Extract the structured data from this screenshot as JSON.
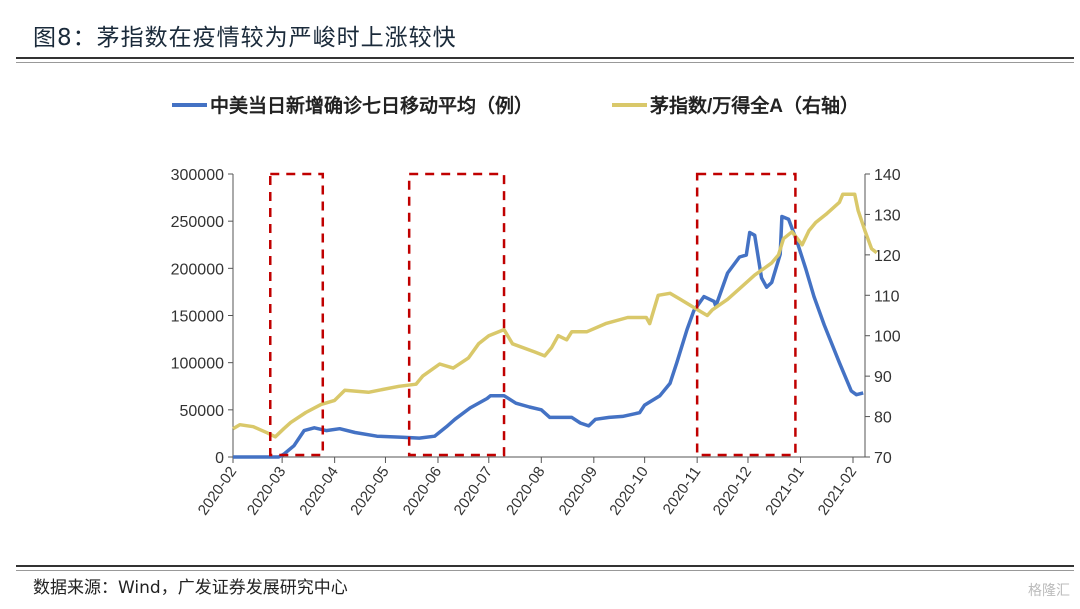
{
  "title": "图8：茅指数在疫情较为严峻时上涨较快",
  "source": "数据来源：Wind，广发证券发展研究中心",
  "watermark": "格隆汇",
  "chart_data": {
    "type": "line",
    "x_origin": "2020-02-01",
    "x_unit": "days since origin",
    "xlim": [
      0,
      372
    ],
    "x_ticks": [
      {
        "label": "2020-02",
        "day": 0
      },
      {
        "label": "2020-03",
        "day": 29
      },
      {
        "label": "2020-04",
        "day": 60
      },
      {
        "label": "2020-05",
        "day": 90
      },
      {
        "label": "2020-06",
        "day": 121
      },
      {
        "label": "2020-07",
        "day": 151
      },
      {
        "label": "2020-08",
        "day": 182
      },
      {
        "label": "2020-09",
        "day": 213
      },
      {
        "label": "2020-10",
        "day": 243
      },
      {
        "label": "2020-11",
        "day": 274
      },
      {
        "label": "2020-12",
        "day": 304
      },
      {
        "label": "2021-01",
        "day": 335
      },
      {
        "label": "2021-02",
        "day": 366
      }
    ],
    "y_left": {
      "lim": [
        0,
        300000
      ],
      "ticks": [
        "0",
        "50000",
        "100000",
        "150000",
        "200000",
        "250000",
        "300000"
      ]
    },
    "y_right": {
      "lim": [
        70,
        140
      ],
      "ticks": [
        "70",
        "80",
        "90",
        "100",
        "110",
        "120",
        "130",
        "140"
      ]
    },
    "legend_position": "top",
    "series": [
      {
        "name": "中美当日新增确诊七日移动平均（例）",
        "axis": "left",
        "color": "#4472C4",
        "points": [
          [
            0,
            0
          ],
          [
            27,
            0
          ],
          [
            30,
            3000
          ],
          [
            36,
            12000
          ],
          [
            42,
            28000
          ],
          [
            48,
            31000
          ],
          [
            55,
            28000
          ],
          [
            63,
            30000
          ],
          [
            72,
            26000
          ],
          [
            85,
            22000
          ],
          [
            100,
            21000
          ],
          [
            110,
            20000
          ],
          [
            119,
            22000
          ],
          [
            126,
            32000
          ],
          [
            131,
            40000
          ],
          [
            140,
            52000
          ],
          [
            150,
            62000
          ],
          [
            152,
            65000
          ],
          [
            160,
            65000
          ],
          [
            167,
            57000
          ],
          [
            175,
            53000
          ],
          [
            182,
            50000
          ],
          [
            187,
            42000
          ],
          [
            200,
            42000
          ],
          [
            205,
            36000
          ],
          [
            210,
            33000
          ],
          [
            214,
            40000
          ],
          [
            222,
            42000
          ],
          [
            230,
            43000
          ],
          [
            240,
            47000
          ],
          [
            243,
            55000
          ],
          [
            252,
            65000
          ],
          [
            258,
            78000
          ],
          [
            262,
            100000
          ],
          [
            268,
            135000
          ],
          [
            272,
            155000
          ],
          [
            278,
            170000
          ],
          [
            284,
            165000
          ],
          [
            285,
            160000
          ],
          [
            292,
            195000
          ],
          [
            299,
            212000
          ],
          [
            303,
            214000
          ],
          [
            305,
            238000
          ],
          [
            308,
            235000
          ],
          [
            312,
            190000
          ],
          [
            315,
            180000
          ],
          [
            318,
            185000
          ],
          [
            323,
            215000
          ],
          [
            324,
            255000
          ],
          [
            328,
            252000
          ],
          [
            333,
            228000
          ],
          [
            338,
            200000
          ],
          [
            343,
            170000
          ],
          [
            349,
            140000
          ],
          [
            358,
            100000
          ],
          [
            365,
            70000
          ],
          [
            368,
            66000
          ],
          [
            372,
            68000
          ]
        ]
      },
      {
        "name": "茅指数/万得全A（右轴）",
        "axis": "right",
        "color": "#D9C86A",
        "points": [
          [
            0,
            77
          ],
          [
            4,
            78
          ],
          [
            12,
            77.5
          ],
          [
            20,
            76
          ],
          [
            25,
            75
          ],
          [
            30,
            77
          ],
          [
            34,
            78.5
          ],
          [
            43,
            81
          ],
          [
            52,
            83
          ],
          [
            60,
            84
          ],
          [
            66,
            86.5
          ],
          [
            80,
            86
          ],
          [
            98,
            87.5
          ],
          [
            108,
            88
          ],
          [
            112,
            90
          ],
          [
            122,
            93
          ],
          [
            130,
            92
          ],
          [
            139,
            94.5
          ],
          [
            145,
            98
          ],
          [
            151,
            100
          ],
          [
            160,
            101.5
          ],
          [
            165,
            98
          ],
          [
            178,
            96
          ],
          [
            184,
            95
          ],
          [
            188,
            97
          ],
          [
            192,
            100
          ],
          [
            197,
            99
          ],
          [
            200,
            101
          ],
          [
            209,
            101
          ],
          [
            220,
            103
          ],
          [
            233,
            104.5
          ],
          [
            244,
            104.5
          ],
          [
            246,
            103
          ],
          [
            251,
            110
          ],
          [
            258,
            110.5
          ],
          [
            264,
            109
          ],
          [
            276,
            106
          ],
          [
            280,
            105
          ],
          [
            283,
            106.4
          ],
          [
            292,
            109
          ],
          [
            300,
            112
          ],
          [
            308,
            115
          ],
          [
            318,
            118
          ],
          [
            322,
            120
          ],
          [
            325,
            124
          ],
          [
            330,
            125.7
          ],
          [
            336,
            122.5
          ],
          [
            340,
            126
          ],
          [
            344,
            128
          ],
          [
            350,
            130
          ],
          [
            358,
            133
          ],
          [
            360,
            135
          ],
          [
            367,
            135
          ],
          [
            369,
            131
          ],
          [
            373,
            126
          ],
          [
            377,
            121.5
          ],
          [
            380,
            120.5
          ]
        ]
      }
    ],
    "annotations": [
      {
        "type": "dashed-box",
        "color": "#C00000",
        "from_day": 22,
        "to_day": 53
      },
      {
        "type": "dashed-box",
        "color": "#C00000",
        "from_day": 104,
        "to_day": 160
      },
      {
        "type": "dashed-box",
        "color": "#C00000",
        "from_day": 274,
        "to_day": 332
      }
    ]
  }
}
